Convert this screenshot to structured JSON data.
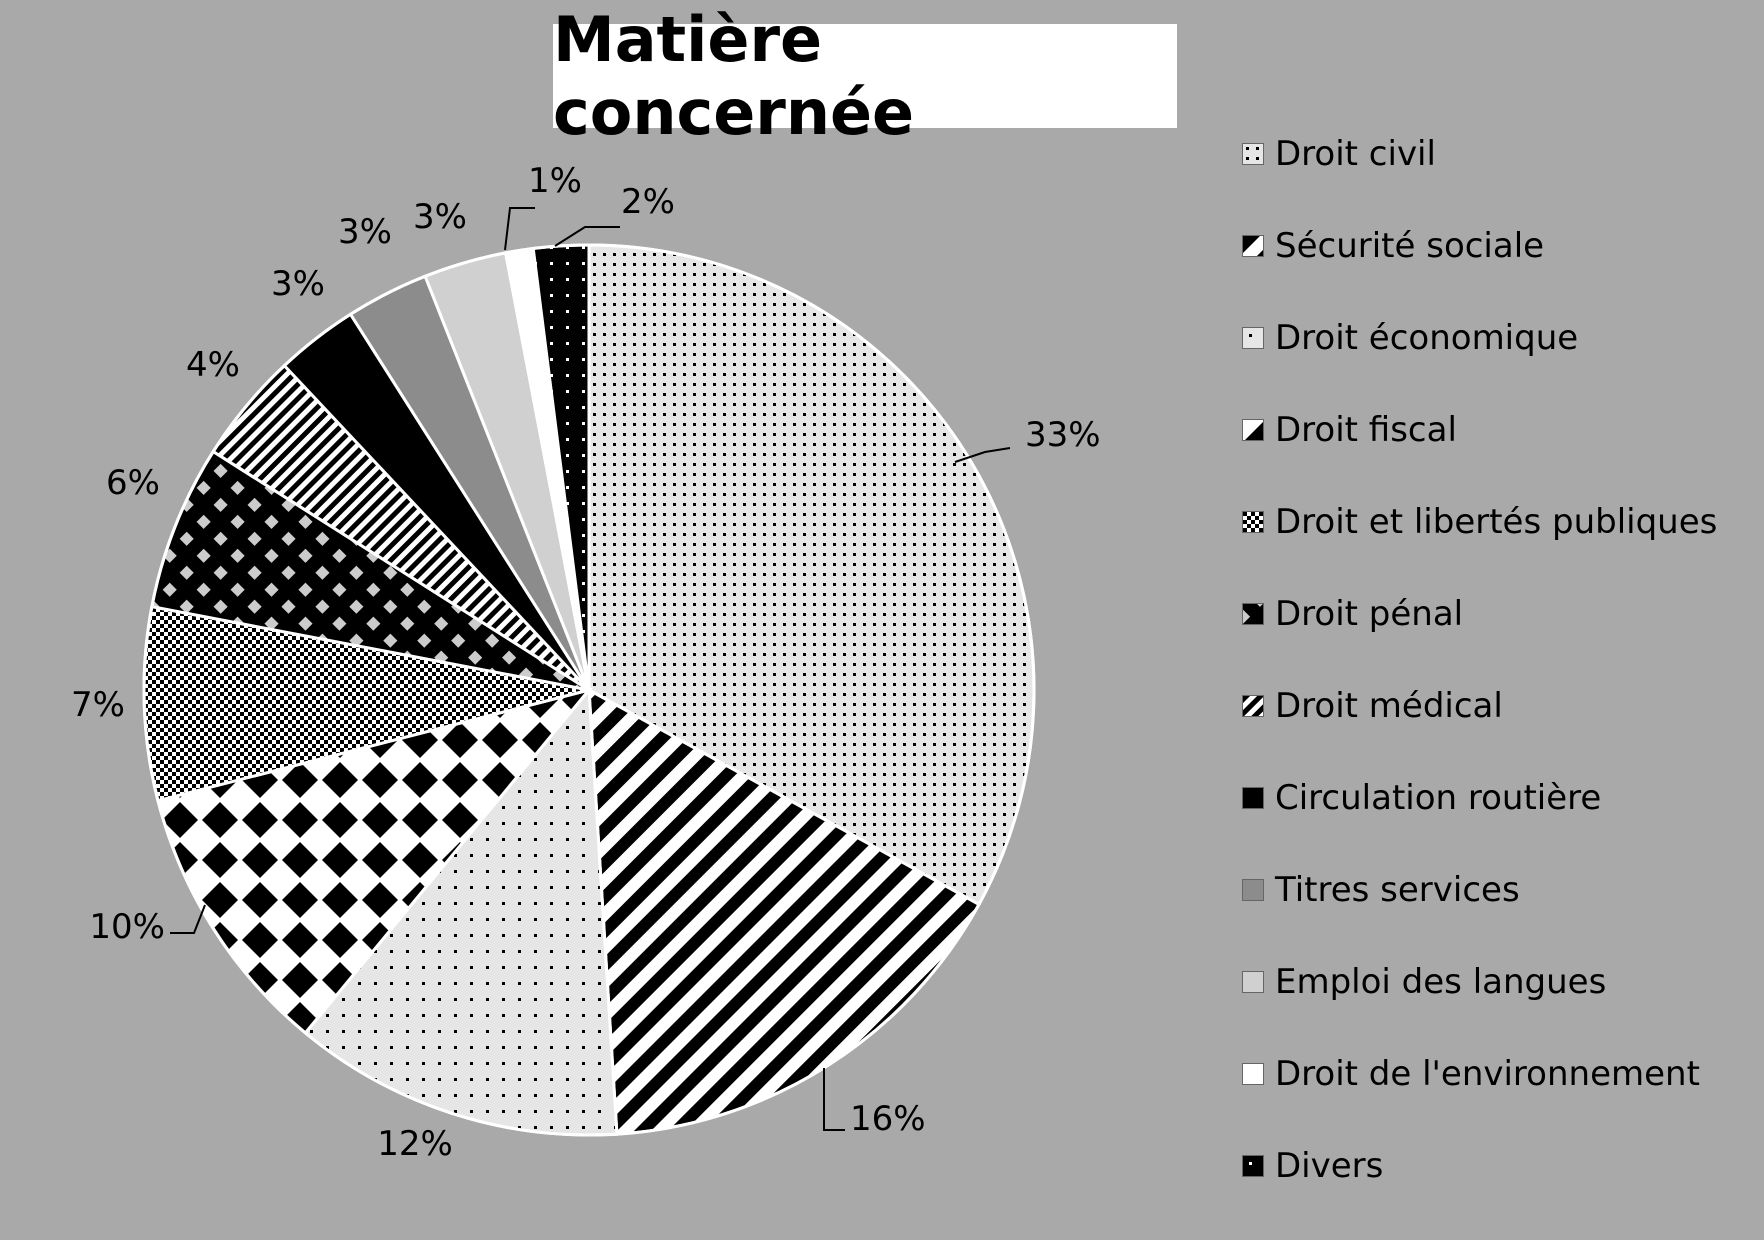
{
  "chart_data": {
    "type": "pie",
    "title": "Matière concernée",
    "categories": [
      "Droit civil",
      "Sécurité sociale",
      "Droit économique",
      "Droit fiscal",
      "Droit et libertés publiques",
      "Droit pénal",
      "Droit médical",
      "Circulation routière",
      "Titres services",
      "Emploi des langues",
      "Droit de l'environnement",
      "Divers"
    ],
    "values": [
      33,
      16,
      12,
      10,
      7,
      6,
      4,
      3,
      3,
      3,
      1,
      2
    ],
    "data_labels": [
      "33%",
      "16%",
      "12%",
      "10%",
      "7%",
      "6%",
      "4%",
      "3%",
      "3%",
      "3%",
      "1%",
      "2%"
    ],
    "unit": "%",
    "legend_position": "right",
    "start_angle_deg": 0,
    "direction": "clockwise",
    "fills": [
      {
        "pattern": "dots-fine",
        "bg": "#e6e6e6",
        "fg": "#000000"
      },
      {
        "pattern": "diag-stripes",
        "bg": "#ffffff",
        "fg": "#000000"
      },
      {
        "pattern": "dots-sparse",
        "bg": "#e6e6e6",
        "fg": "#000000"
      },
      {
        "pattern": "diamonds",
        "bg": "#ffffff",
        "fg": "#000000"
      },
      {
        "pattern": "checker",
        "bg": "#ffffff",
        "fg": "#000000"
      },
      {
        "pattern": "squares",
        "bg": "#000000",
        "fg": "#cccccc"
      },
      {
        "pattern": "diag-fine",
        "bg": "#ffffff",
        "fg": "#000000"
      },
      {
        "pattern": "solid",
        "bg": "#000000",
        "fg": "#000000"
      },
      {
        "pattern": "solid",
        "bg": "#8c8c8c",
        "fg": "#8c8c8c"
      },
      {
        "pattern": "solid",
        "bg": "#d0d0d0",
        "fg": "#d0d0d0"
      },
      {
        "pattern": "solid",
        "bg": "#ffffff",
        "fg": "#ffffff"
      },
      {
        "pattern": "dots-sparse",
        "bg": "#000000",
        "fg": "#ffffff"
      }
    ]
  }
}
